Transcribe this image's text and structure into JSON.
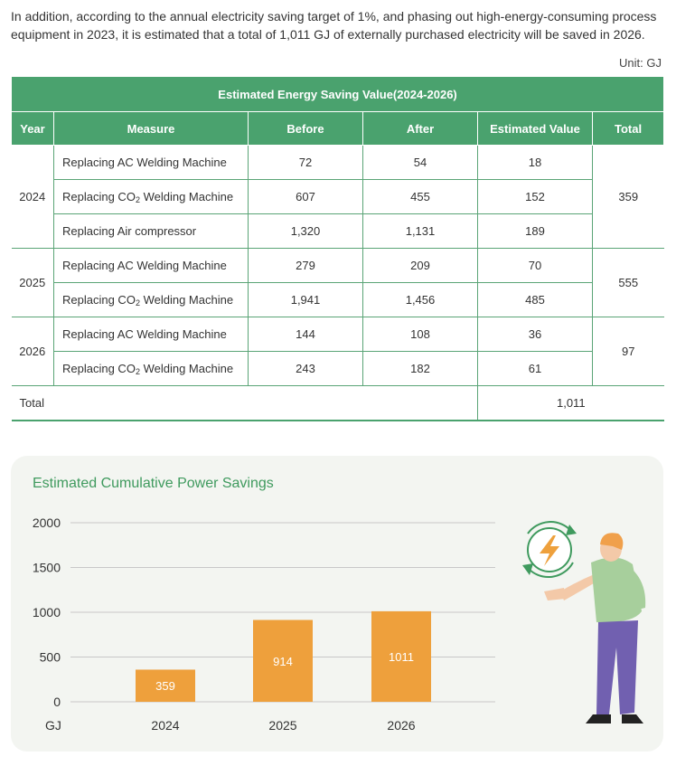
{
  "intro": "In addition, according to the annual electricity saving target of 1%, and phasing out high-energy-consuming process equipment in 2023, it is estimated that a total of 1,011 GJ of externally purchased electricity will be saved in 2026.",
  "unit": "Unit: GJ",
  "table": {
    "title": "Estimated Energy Saving Value(2024-2026)",
    "headers": [
      "Year",
      "Measure",
      "Before",
      "After",
      "Estimated Value",
      "Total"
    ],
    "groups": [
      {
        "year": "2024",
        "total": "359",
        "rows": [
          {
            "measure": "Replacing AC Welding Machine",
            "before": "72",
            "after": "54",
            "value": "18"
          },
          {
            "measure": "Replacing CO2 Welding Machine",
            "before": "607",
            "after": "455",
            "value": "152"
          },
          {
            "measure": "Replacing Air compressor",
            "before": "1,320",
            "after": "1,131",
            "value": "189"
          }
        ]
      },
      {
        "year": "2025",
        "total": "555",
        "rows": [
          {
            "measure": "Replacing AC Welding Machine",
            "before": "279",
            "after": "209",
            "value": "70"
          },
          {
            "measure": "Replacing CO2 Welding Machine",
            "before": "1,941",
            "after": "1,456",
            "value": "485"
          }
        ]
      },
      {
        "year": "2026",
        "total": "97",
        "rows": [
          {
            "measure": "Replacing AC Welding Machine",
            "before": "144",
            "after": "108",
            "value": "36"
          },
          {
            "measure": "Replacing CO2 Welding Machine",
            "before": "243",
            "after": "182",
            "value": "61"
          }
        ]
      }
    ],
    "total_label": "Total",
    "total_value": "1,011"
  },
  "colors": {
    "table_green": "#4aa26e",
    "bar": "#eea03c",
    "title_green": "#3f9a5e",
    "panel_bg": "#f3f5f1"
  },
  "chart_data": {
    "type": "bar",
    "title": "Estimated Cumulative Power Savings",
    "categories": [
      "2024",
      "2025",
      "2026"
    ],
    "values": [
      359,
      914,
      1011
    ],
    "data_labels": [
      "359",
      "914",
      "1011"
    ],
    "yticks": [
      0,
      500,
      1000,
      1500,
      2000
    ],
    "ylabel": "GJ",
    "ylim": [
      0,
      2000
    ],
    "grid": true
  },
  "illustration": {
    "icons": [
      "lightning-bolt-icon",
      "refresh-cycle-icon"
    ],
    "figure": "person-gesturing"
  }
}
